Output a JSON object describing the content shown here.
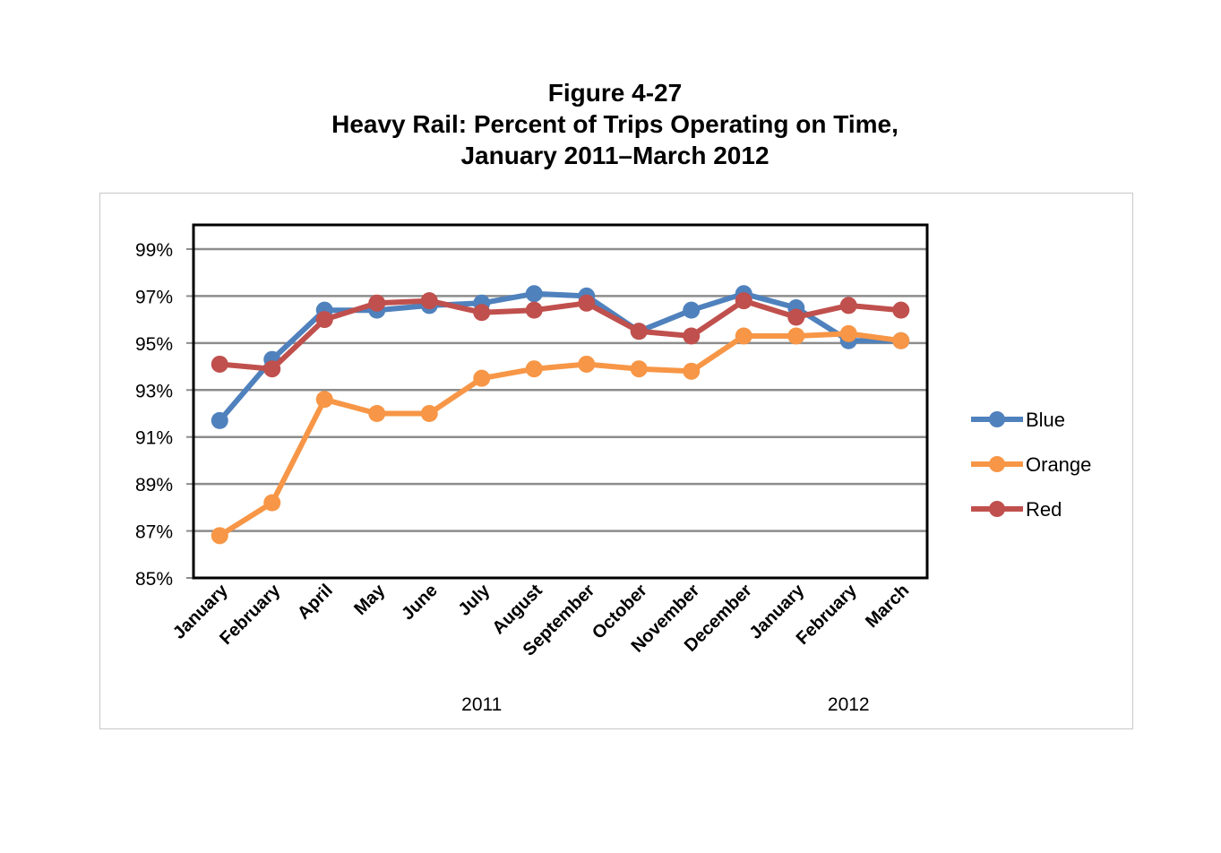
{
  "title": {
    "line1": "Figure 4-27",
    "line2": "Heavy Rail: Percent of Trips Operating on Time,",
    "line3": "January 2011–March 2012"
  },
  "chart_data": {
    "type": "line",
    "title": "Figure 4-27 Heavy Rail: Percent of Trips Operating on Time, January 2011–March 2012",
    "xlabel": "",
    "ylabel": "",
    "categories": [
      "January",
      "February",
      "April",
      "May",
      "June",
      "July",
      "August",
      "September",
      "October",
      "November",
      "December",
      "January",
      "February",
      "March"
    ],
    "year_groups": [
      {
        "label": "2011",
        "start": 0,
        "end": 10
      },
      {
        "label": "2012",
        "start": 11,
        "end": 13
      }
    ],
    "series": [
      {
        "name": "Blue",
        "color": "#4f81bd",
        "values": [
          91.7,
          94.3,
          96.4,
          96.4,
          96.6,
          96.7,
          97.1,
          97.0,
          95.5,
          96.4,
          97.1,
          96.5,
          95.1,
          95.1
        ]
      },
      {
        "name": "Orange",
        "color": "#f79646",
        "values": [
          86.8,
          88.2,
          92.6,
          92.0,
          92.0,
          93.5,
          93.9,
          94.1,
          93.9,
          93.8,
          95.3,
          95.3,
          95.4,
          95.1
        ]
      },
      {
        "name": "Red",
        "color": "#c0504d",
        "values": [
          94.1,
          93.9,
          96.0,
          96.7,
          96.8,
          96.3,
          96.4,
          96.7,
          95.5,
          95.3,
          96.8,
          96.1,
          96.6,
          96.4
        ]
      }
    ],
    "ylim": [
      85,
      100
    ],
    "yticks": [
      "85%",
      "87%",
      "89%",
      "91%",
      "93%",
      "95%",
      "97%",
      "99%"
    ],
    "ytick_values": [
      85,
      87,
      89,
      91,
      93,
      95,
      97,
      99
    ],
    "grid": true,
    "legend_position": "right"
  }
}
